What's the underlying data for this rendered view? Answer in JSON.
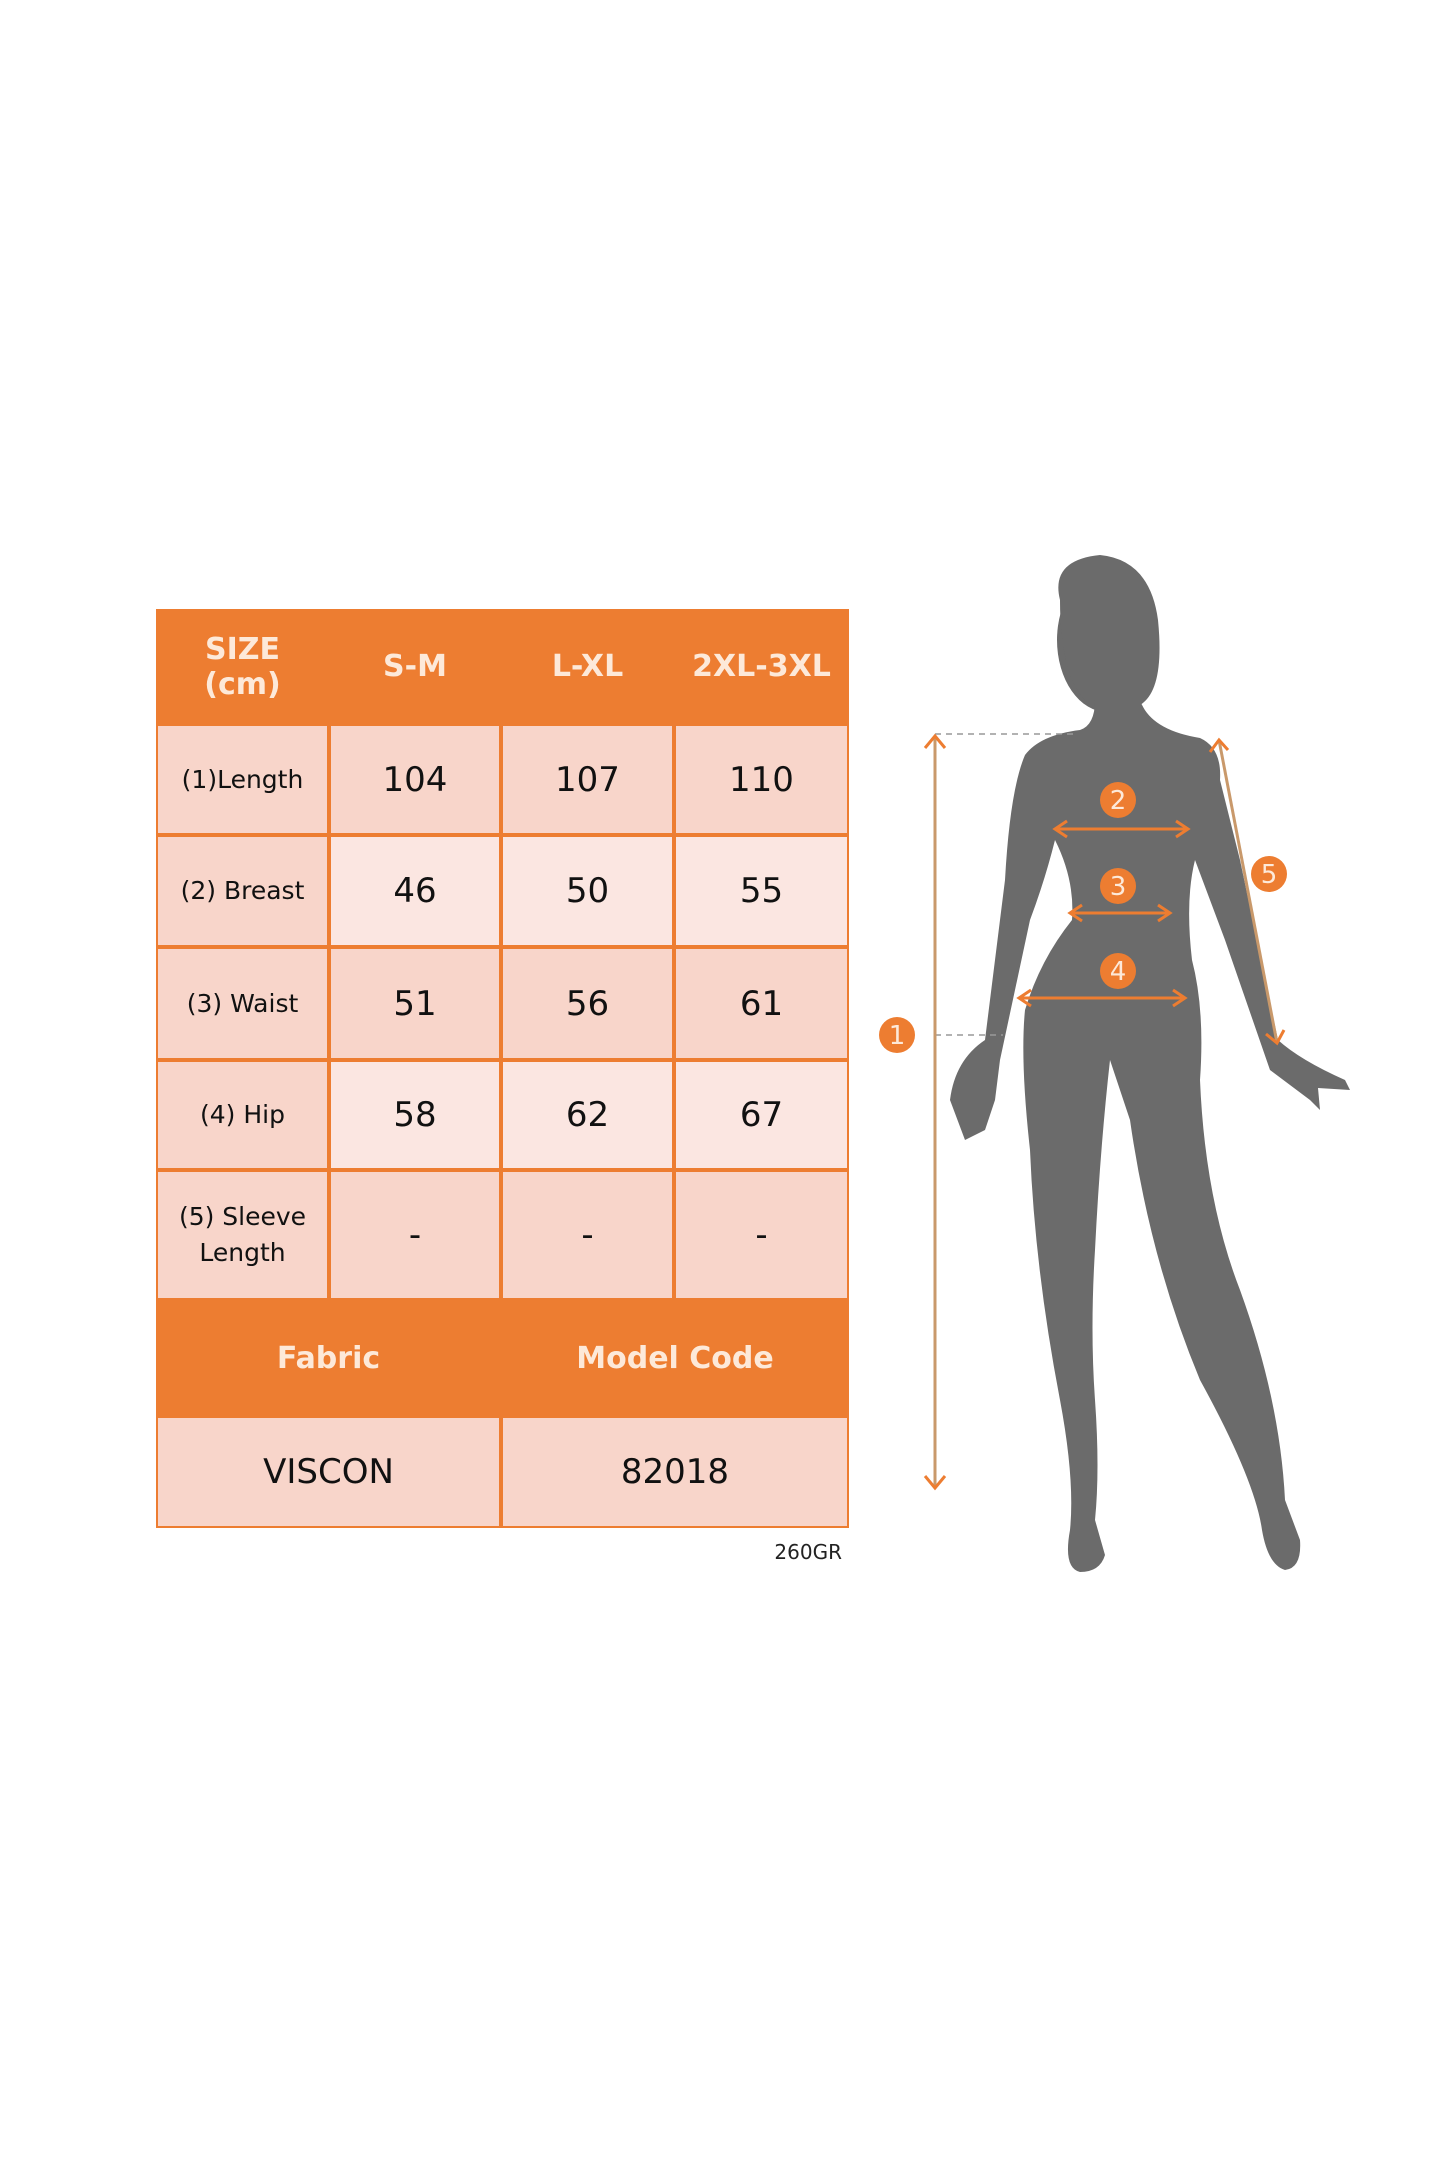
{
  "table": {
    "header": {
      "size_label": "SIZE\n(cm)",
      "sizes": [
        "S-M",
        "L-XL",
        "2XL-3XL"
      ]
    },
    "rows": [
      {
        "label": "(1)Length",
        "values": [
          "104",
          "107",
          "110"
        ]
      },
      {
        "label": "(2) Breast",
        "values": [
          "46",
          "50",
          "55"
        ]
      },
      {
        "label": "(3) Waist",
        "values": [
          "51",
          "56",
          "61"
        ]
      },
      {
        "label": "(4) Hip",
        "values": [
          "58",
          "62",
          "67"
        ]
      },
      {
        "label": "(5) Sleeve\nLength",
        "values": [
          "-",
          "-",
          "-"
        ]
      }
    ],
    "info_headers": [
      "Fabric",
      "Model Code"
    ],
    "info_values": [
      "VISCON",
      "82018"
    ]
  },
  "weight_note": "260GR",
  "figure": {
    "badges": [
      "1",
      "2",
      "3",
      "4",
      "5"
    ]
  },
  "colors": {
    "accent": "#ed7d31",
    "cell_dark": "#f8d5ca",
    "cell_light": "#fbe6e1",
    "header_text": "#fde9d9",
    "silhouette": "#6b6b6b"
  }
}
